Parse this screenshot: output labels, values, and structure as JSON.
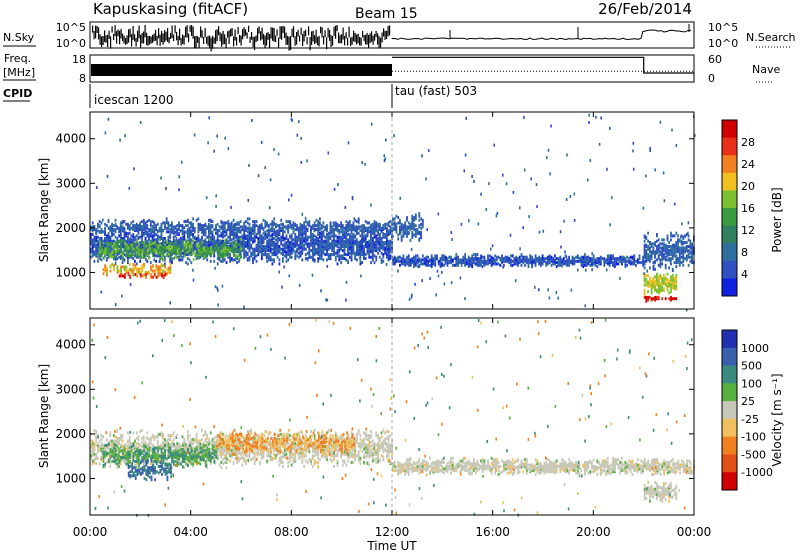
{
  "header": {
    "station": "Kapuskasing (fitACF)",
    "beam": "Beam 15",
    "date": "26/Feb/2014"
  },
  "labels": {
    "nsky": "N.Sky",
    "nsearch": "N.Search",
    "freq": "Freq.",
    "freq_unit": "[MHz]",
    "nave": "Nave",
    "cpid": "CPID",
    "slant_range": "Slant Range [km]",
    "time_ut": "Time UT"
  },
  "chart_data": [
    {
      "type": "line",
      "name": "noise",
      "left_axis": {
        "label": "N.Sky",
        "ticks": [
          "10^5",
          "10^0"
        ]
      },
      "right_axis": {
        "label": "N.Search",
        "ticks": [
          "10^5",
          "10^0"
        ]
      },
      "segments": [
        {
          "t_start": 0,
          "t_end": 12,
          "style": "dense noisy band near 10^5"
        },
        {
          "t_start": 12,
          "t_end": 22,
          "style": "low steady level with occasional spikes"
        },
        {
          "t_start": 22,
          "t_end": 24,
          "style": "raised level"
        }
      ]
    },
    {
      "type": "line",
      "name": "frequency-nave",
      "left_axis": {
        "label": "Freq. [MHz]",
        "ticks": [
          18,
          8
        ]
      },
      "right_axis": {
        "label": "Nave",
        "ticks": [
          60,
          0
        ]
      },
      "freq_mhz": [
        {
          "t_start": 0,
          "t_end": 12,
          "value": 12
        },
        {
          "t_start": 12,
          "t_end": 22,
          "value": 12
        },
        {
          "t_start": 22,
          "t_end": 24,
          "value": 12
        }
      ],
      "nave": [
        {
          "t_start": 0,
          "t_end": 12,
          "value": 50
        },
        {
          "t_start": 12,
          "t_end": 22,
          "value": 55
        },
        {
          "t_start": 22,
          "t_end": 24,
          "value": 20
        }
      ]
    },
    {
      "type": "table",
      "name": "cpid",
      "entries": [
        {
          "t_start": 0,
          "label": "icescan 1200"
        },
        {
          "t_start": 12,
          "label": "tau (fast) 503"
        }
      ]
    },
    {
      "type": "heatmap",
      "name": "power",
      "xlabel": "Time UT",
      "ylabel": "Slant Range [km]",
      "xlim": [
        0,
        24
      ],
      "ylim": [
        180,
        4600
      ],
      "yticks": [
        1000,
        2000,
        3000,
        4000
      ],
      "colorbar": {
        "label": "Power [dB]",
        "ticks": [
          4,
          8,
          12,
          16,
          20,
          24,
          28
        ],
        "range": [
          0,
          30
        ]
      },
      "features": [
        {
          "t_start": 0.0,
          "t_end": 12.0,
          "r_center": 1600,
          "width": 450,
          "level": 5,
          "density": 0.75
        },
        {
          "t_start": 0.0,
          "t_end": 12.0,
          "r_center": 2000,
          "width": 200,
          "level": 6,
          "density": 0.55
        },
        {
          "t_start": 0.3,
          "t_end": 6.0,
          "r_center": 1500,
          "width": 250,
          "level": 14,
          "density": 0.6
        },
        {
          "t_start": 0.5,
          "t_end": 3.2,
          "r_center": 1050,
          "width": 150,
          "level": 20,
          "density": 0.6
        },
        {
          "t_start": 1.0,
          "t_end": 3.0,
          "r_center": 920,
          "width": 70,
          "level": 26,
          "density": 0.55
        },
        {
          "t_start": 12.0,
          "t_end": 13.2,
          "r_center": 2000,
          "width": 350,
          "level": 6,
          "density": 0.6
        },
        {
          "t_start": 12.0,
          "t_end": 22.0,
          "r_center": 1250,
          "width": 160,
          "level": 5,
          "density": 0.8
        },
        {
          "t_start": 22.0,
          "t_end": 24.0,
          "r_center": 1450,
          "width": 450,
          "level": 6,
          "density": 0.6
        },
        {
          "t_start": 22.0,
          "t_end": 23.3,
          "r_center": 750,
          "width": 280,
          "level": 18,
          "density": 0.75
        },
        {
          "t_start": 22.0,
          "t_end": 23.3,
          "r_center": 400,
          "width": 60,
          "level": 28,
          "density": 0.8
        }
      ]
    },
    {
      "type": "heatmap",
      "name": "velocity",
      "xlabel": "Time UT",
      "ylabel": "Slant Range [km]",
      "xlim": [
        0,
        24
      ],
      "ylim": [
        180,
        4600
      ],
      "xticks": [
        "00:00",
        "04:00",
        "08:00",
        "12:00",
        "16:00",
        "20:00",
        "00:00"
      ],
      "yticks": [
        1000,
        2000,
        3000,
        4000
      ],
      "colorbar": {
        "label": "Velocity [m s⁻¹]",
        "ticks": [
          1000,
          500,
          100,
          25,
          -25,
          -100,
          -500,
          -1000
        ]
      },
      "features": [
        {
          "t_start": 0.0,
          "t_end": 12.0,
          "r_center": 1650,
          "width": 450,
          "level": 0,
          "density": 0.6
        },
        {
          "t_start": 0.5,
          "t_end": 5.0,
          "r_center": 1500,
          "width": 280,
          "level": 100,
          "density": 0.55
        },
        {
          "t_start": 1.5,
          "t_end": 3.2,
          "r_center": 1150,
          "width": 250,
          "level": 500,
          "density": 0.5
        },
        {
          "t_start": 5.0,
          "t_end": 10.5,
          "r_center": 1800,
          "width": 300,
          "level": -100,
          "density": 0.45
        },
        {
          "t_start": 12.0,
          "t_end": 24.0,
          "r_center": 1250,
          "width": 200,
          "level": 0,
          "density": 0.75
        },
        {
          "t_start": 22.0,
          "t_end": 23.3,
          "r_center": 700,
          "width": 250,
          "level": 0,
          "density": 0.65
        }
      ]
    }
  ]
}
